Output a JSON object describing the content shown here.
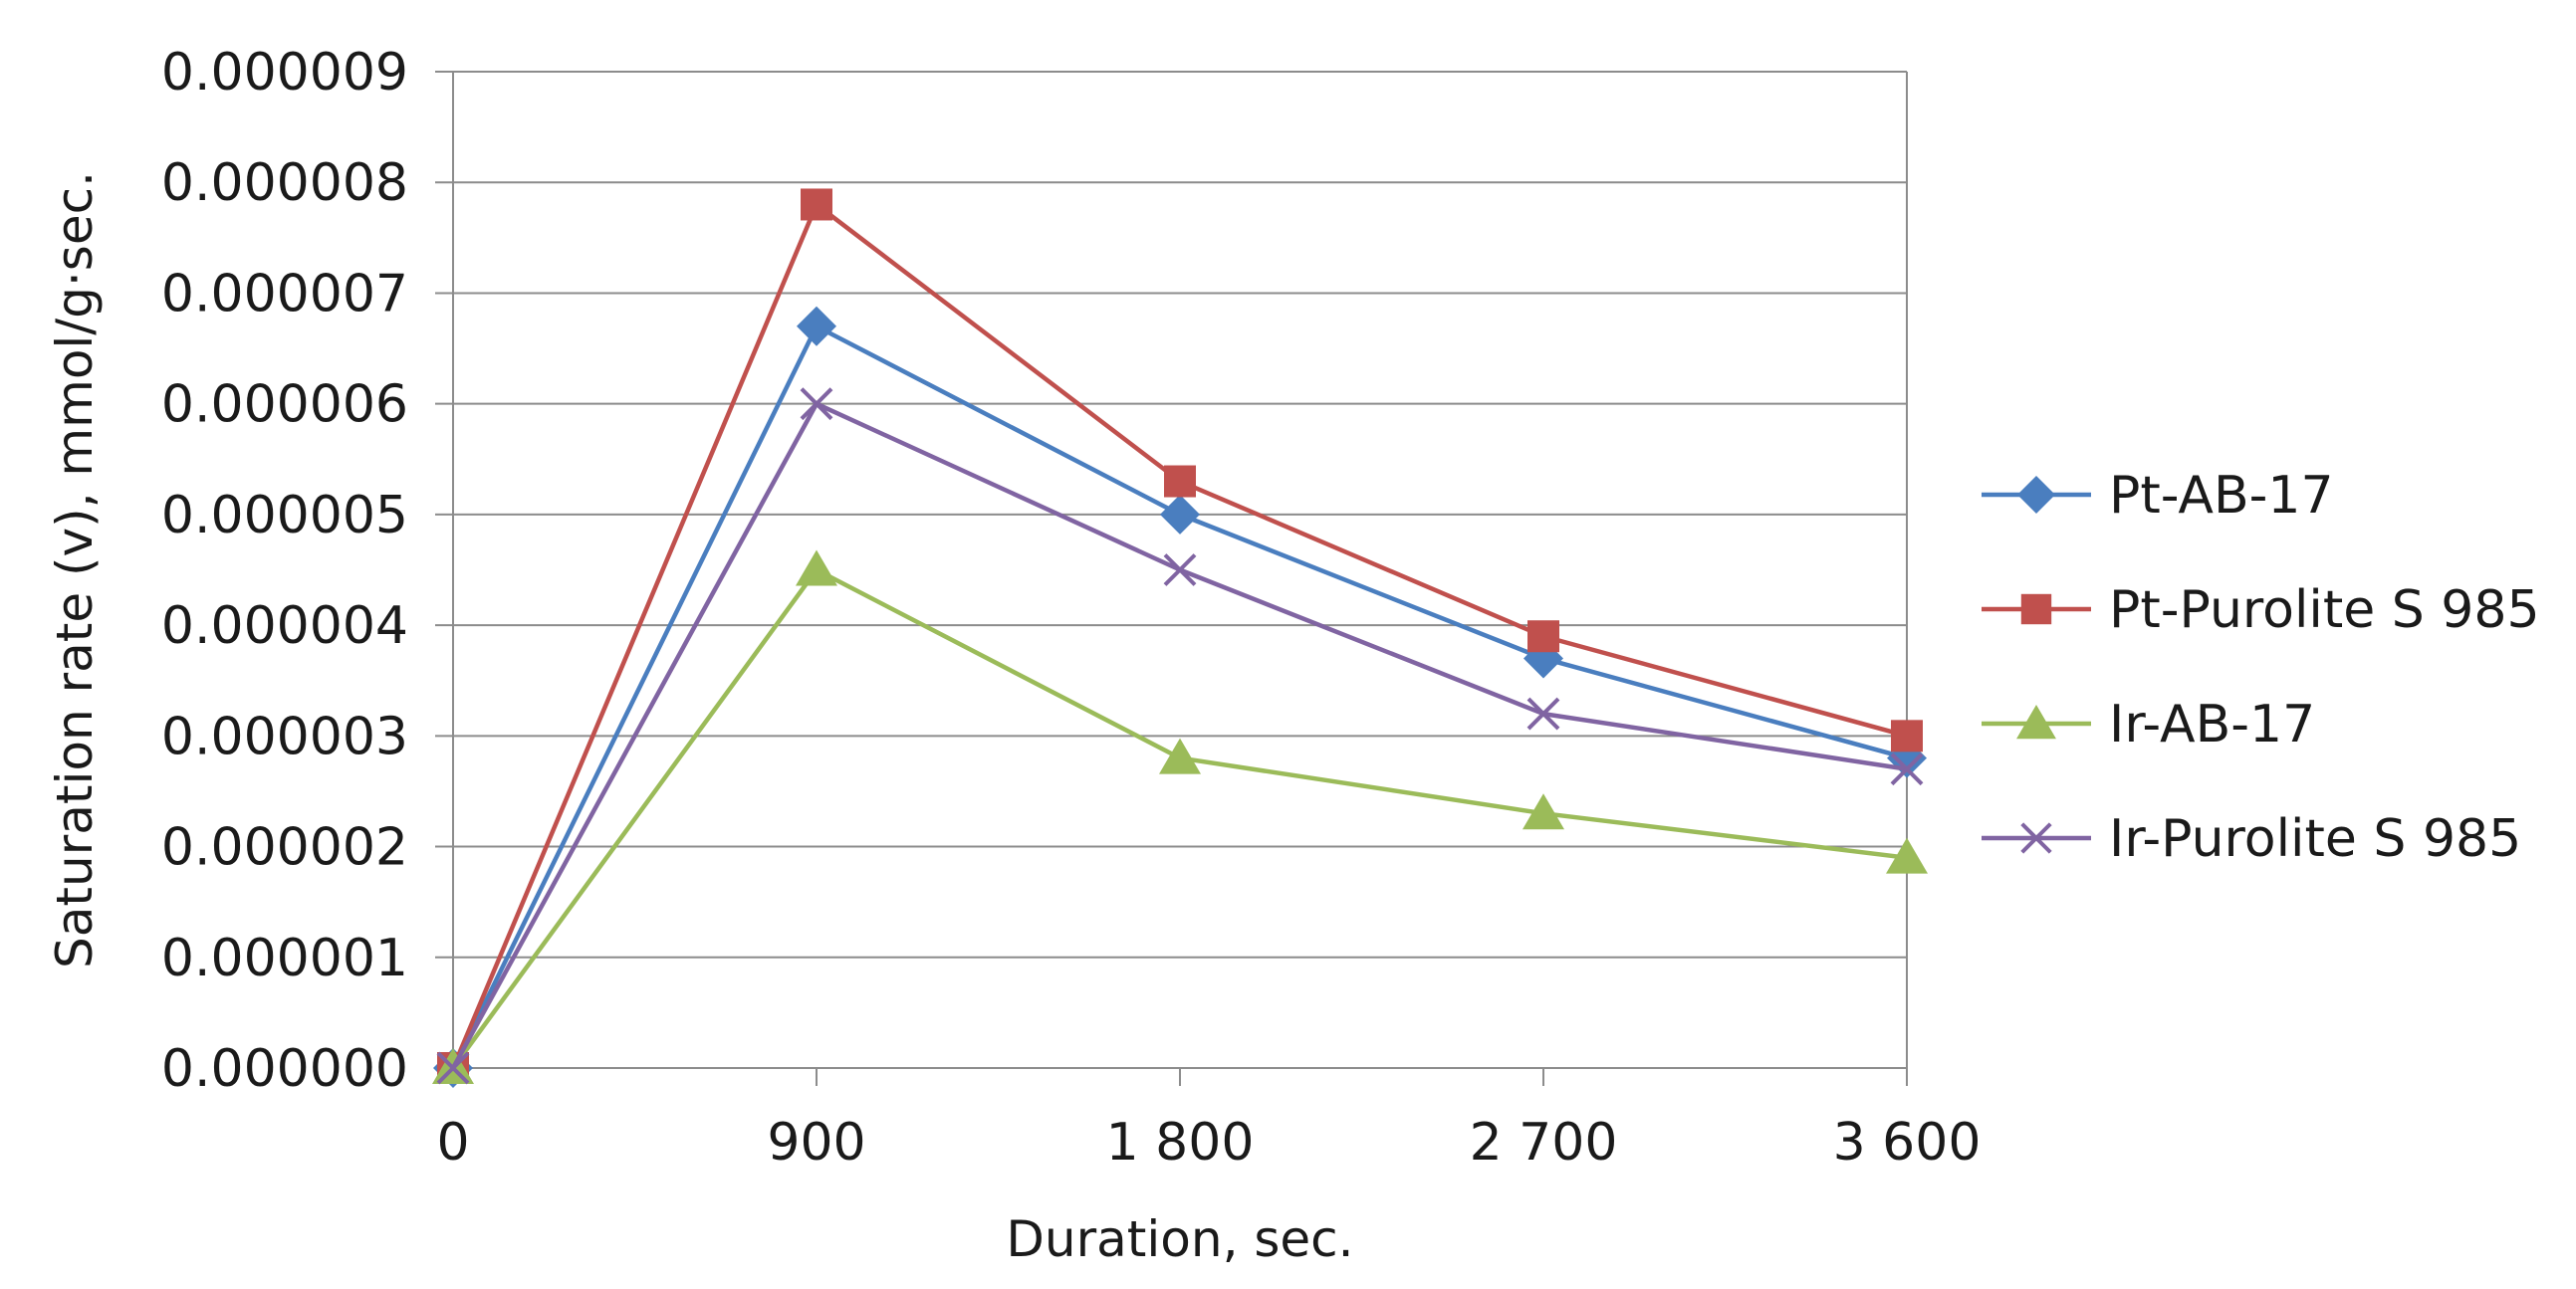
{
  "chart_data": {
    "type": "line",
    "title": "",
    "xlabel": "Duration, sec.",
    "ylabel": "Saturation rate (v), mmol/g·sec.",
    "x": [
      0,
      900,
      1800,
      2700,
      3600
    ],
    "x_tick_labels": [
      "0",
      "900",
      "1 800",
      "2 700",
      "3 600"
    ],
    "ylim": [
      0,
      9e-06
    ],
    "y_ticks": [
      0,
      1e-06,
      2e-06,
      3e-06,
      4e-06,
      5e-06,
      6e-06,
      7e-06,
      8e-06,
      9e-06
    ],
    "y_tick_labels": [
      "0.000000",
      "0.000001",
      "0.000002",
      "0.000003",
      "0.000004",
      "0.000005",
      "0.000006",
      "0.000007",
      "0.000008",
      "0.000009"
    ],
    "grid": true,
    "legend_position": "right",
    "series": [
      {
        "name": "Pt-AB-17",
        "color": "#4a7ebf",
        "marker": "diamond",
        "values": [
          0,
          6.7e-06,
          5e-06,
          3.7e-06,
          2.8e-06
        ]
      },
      {
        "name": "Pt-Purolite S 985",
        "color": "#c0504d",
        "marker": "square",
        "values": [
          0,
          7.8e-06,
          5.3e-06,
          3.9e-06,
          3e-06
        ]
      },
      {
        "name": "Ir-AB-17",
        "color": "#9bbb59",
        "marker": "triangle",
        "values": [
          0,
          4.5e-06,
          2.8e-06,
          2.3e-06,
          1.9e-06
        ]
      },
      {
        "name": "Ir-Purolite S 985",
        "color": "#8064a2",
        "marker": "x",
        "values": [
          0,
          6e-06,
          4.5e-06,
          3.2e-06,
          2.7e-06
        ]
      }
    ]
  }
}
